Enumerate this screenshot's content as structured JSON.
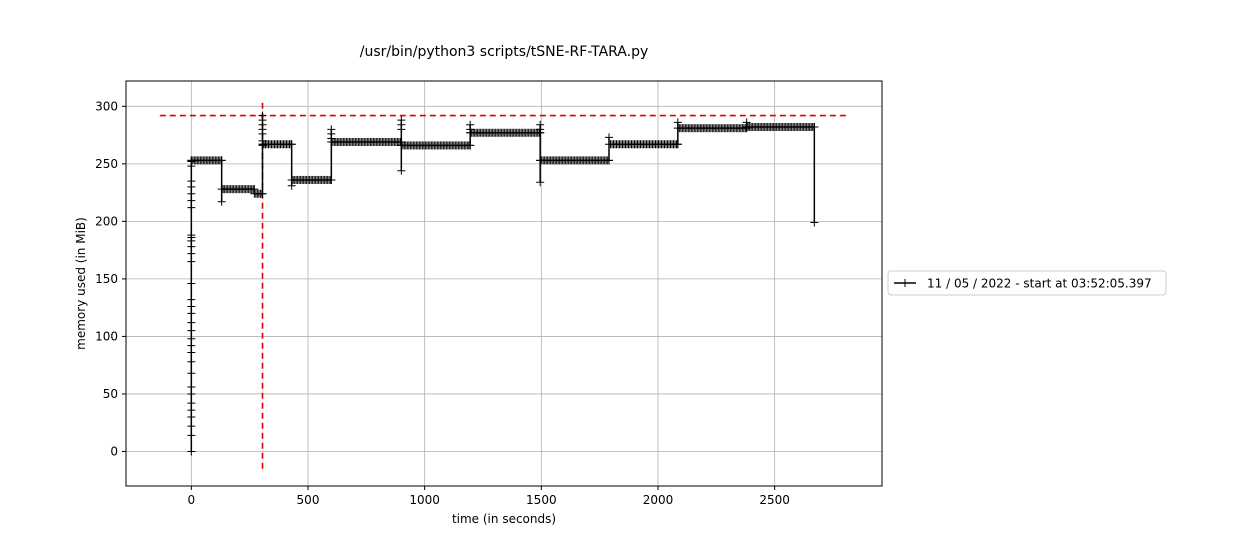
{
  "chart_data": {
    "type": "line",
    "title": "/usr/bin/python3 scripts/tSNE-RF-TARA.py",
    "xlabel": "time (in seconds)",
    "ylabel": "memory used (in MiB)",
    "xlim": [
      -280,
      2960
    ],
    "ylim": [
      -30,
      322
    ],
    "xticks": [
      0,
      500,
      1000,
      1500,
      2000,
      2500
    ],
    "yticks": [
      0,
      50,
      100,
      150,
      200,
      250,
      300
    ],
    "grid": true,
    "legend_position": "right",
    "series": [
      {
        "name": "11 / 05 / 2022 - start at 03:52:05.397",
        "color": "#000000",
        "marker": "+",
        "segments": [
          {
            "x": [
              0,
              0,
              0,
              0,
              0,
              0,
              0,
              0,
              0,
              0,
              0,
              0,
              0,
              0,
              0,
              0,
              0,
              0,
              0,
              0,
              0,
              0,
              0,
              0,
              0,
              0,
              0,
              0,
              0,
              0,
              0,
              0,
              0
            ],
            "y": [
              0,
              14,
              22,
              30,
              36,
              42,
              50,
              56,
              68,
              78,
              86,
              92,
              98,
              105,
              112,
              120,
              126,
              132,
              146,
              165,
              172,
              178,
              183,
              186,
              188,
              212,
              218,
              224,
              230,
              235,
              248,
              252,
              253
            ]
          },
          {
            "x": [
              0,
              130
            ],
            "y": [
              253,
              253
            ]
          },
          {
            "x": [
              130,
              130,
              130,
              270
            ],
            "y": [
              253,
              217,
              228,
              228
            ]
          },
          {
            "x": [
              270,
              305
            ],
            "y": [
              224,
              224
            ]
          },
          {
            "x": [
              305,
              305,
              305,
              305,
              305,
              305,
              305,
              305,
              305
            ],
            "y": [
              224,
              292,
              288,
              284,
              280,
              276,
              270,
              266,
              267
            ]
          },
          {
            "x": [
              305,
              430
            ],
            "y": [
              267,
              267
            ]
          },
          {
            "x": [
              430,
              430,
              430,
              600
            ],
            "y": [
              267,
              231,
              236,
              236
            ]
          },
          {
            "x": [
              600,
              600,
              600,
              600,
              600
            ],
            "y": [
              236,
              280,
              276,
              272,
              269
            ]
          },
          {
            "x": [
              600,
              900
            ],
            "y": [
              269,
              269
            ]
          },
          {
            "x": [
              900,
              900,
              900,
              900,
              900,
              900
            ],
            "y": [
              269,
              244,
              288,
              284,
              280,
              266
            ]
          },
          {
            "x": [
              900,
              1195
            ],
            "y": [
              266,
              266
            ]
          },
          {
            "x": [
              1195,
              1195,
              1195,
              1195
            ],
            "y": [
              266,
              284,
              280,
              277
            ]
          },
          {
            "x": [
              1195,
              1495
            ],
            "y": [
              277,
              277
            ]
          },
          {
            "x": [
              1495,
              1495,
              1495,
              1495,
              1495
            ],
            "y": [
              277,
              234,
              284,
              280,
              253
            ]
          },
          {
            "x": [
              1495,
              1790
            ],
            "y": [
              253,
              253
            ]
          },
          {
            "x": [
              1790,
              1790,
              1790,
              2085
            ],
            "y": [
              253,
              273,
              267,
              267
            ]
          },
          {
            "x": [
              2085,
              2085,
              2085,
              2380
            ],
            "y": [
              267,
              286,
              281,
              281
            ]
          },
          {
            "x": [
              2380,
              2380,
              2380,
              2670
            ],
            "y": [
              281,
              286,
              282,
              282
            ]
          },
          {
            "x": [
              2670,
              2670
            ],
            "y": [
              282,
              199
            ]
          }
        ]
      }
    ],
    "reference_lines": [
      {
        "orientation": "horizontal",
        "value": 292,
        "from": -135,
        "to": 2815,
        "color": "#e00000",
        "style": "dashed"
      },
      {
        "orientation": "vertical",
        "value": 305,
        "from": -15,
        "to": 306,
        "color": "#e00000",
        "style": "dashed"
      }
    ]
  }
}
